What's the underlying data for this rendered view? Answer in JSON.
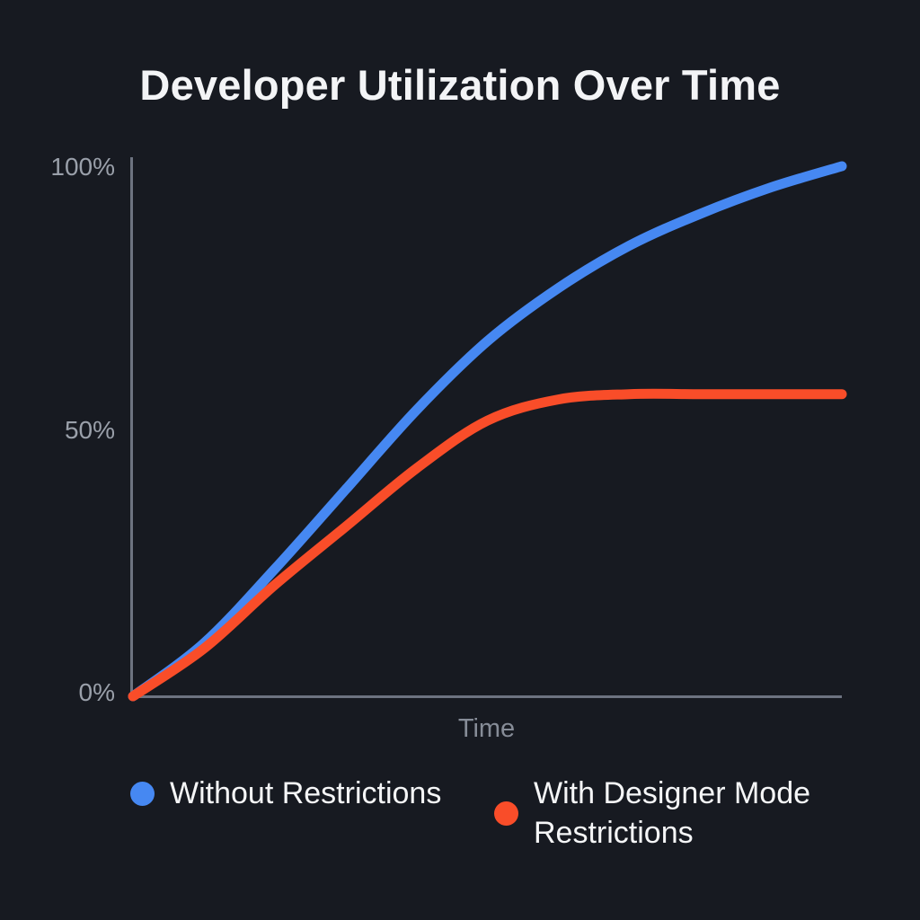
{
  "page": {
    "background": "#171a21"
  },
  "chart_data": {
    "type": "line",
    "title": "Developer Utilization Over Time",
    "xlabel": "Time",
    "ylabel": "",
    "xlim": [
      0,
      1
    ],
    "ylim": [
      0,
      100
    ],
    "grid": false,
    "legend_position": "bottom",
    "axis_color": "#6d7380",
    "tick_label_color": "#9aa0aa",
    "yticks": [
      {
        "value": 0,
        "label": "0%"
      },
      {
        "value": 50,
        "label": "50%"
      },
      {
        "value": 100,
        "label": "100%"
      }
    ],
    "series": [
      {
        "name": "Without Restrictions",
        "color": "#4688f2",
        "x": [
          0,
          0.1,
          0.2,
          0.3,
          0.4,
          0.5,
          0.6,
          0.7,
          0.8,
          0.9,
          1.0
        ],
        "values": [
          0,
          10,
          24,
          39,
          54,
          67,
          77,
          85,
          91,
          96,
          100
        ]
      },
      {
        "name": "With Designer Mode Restrictions",
        "color": "#f94d29",
        "x": [
          0,
          0.1,
          0.2,
          0.3,
          0.4,
          0.5,
          0.6,
          0.7,
          0.8,
          0.9,
          1.0
        ],
        "values": [
          0,
          9,
          21,
          32,
          43,
          52,
          56,
          57,
          57,
          57,
          57
        ]
      }
    ]
  }
}
